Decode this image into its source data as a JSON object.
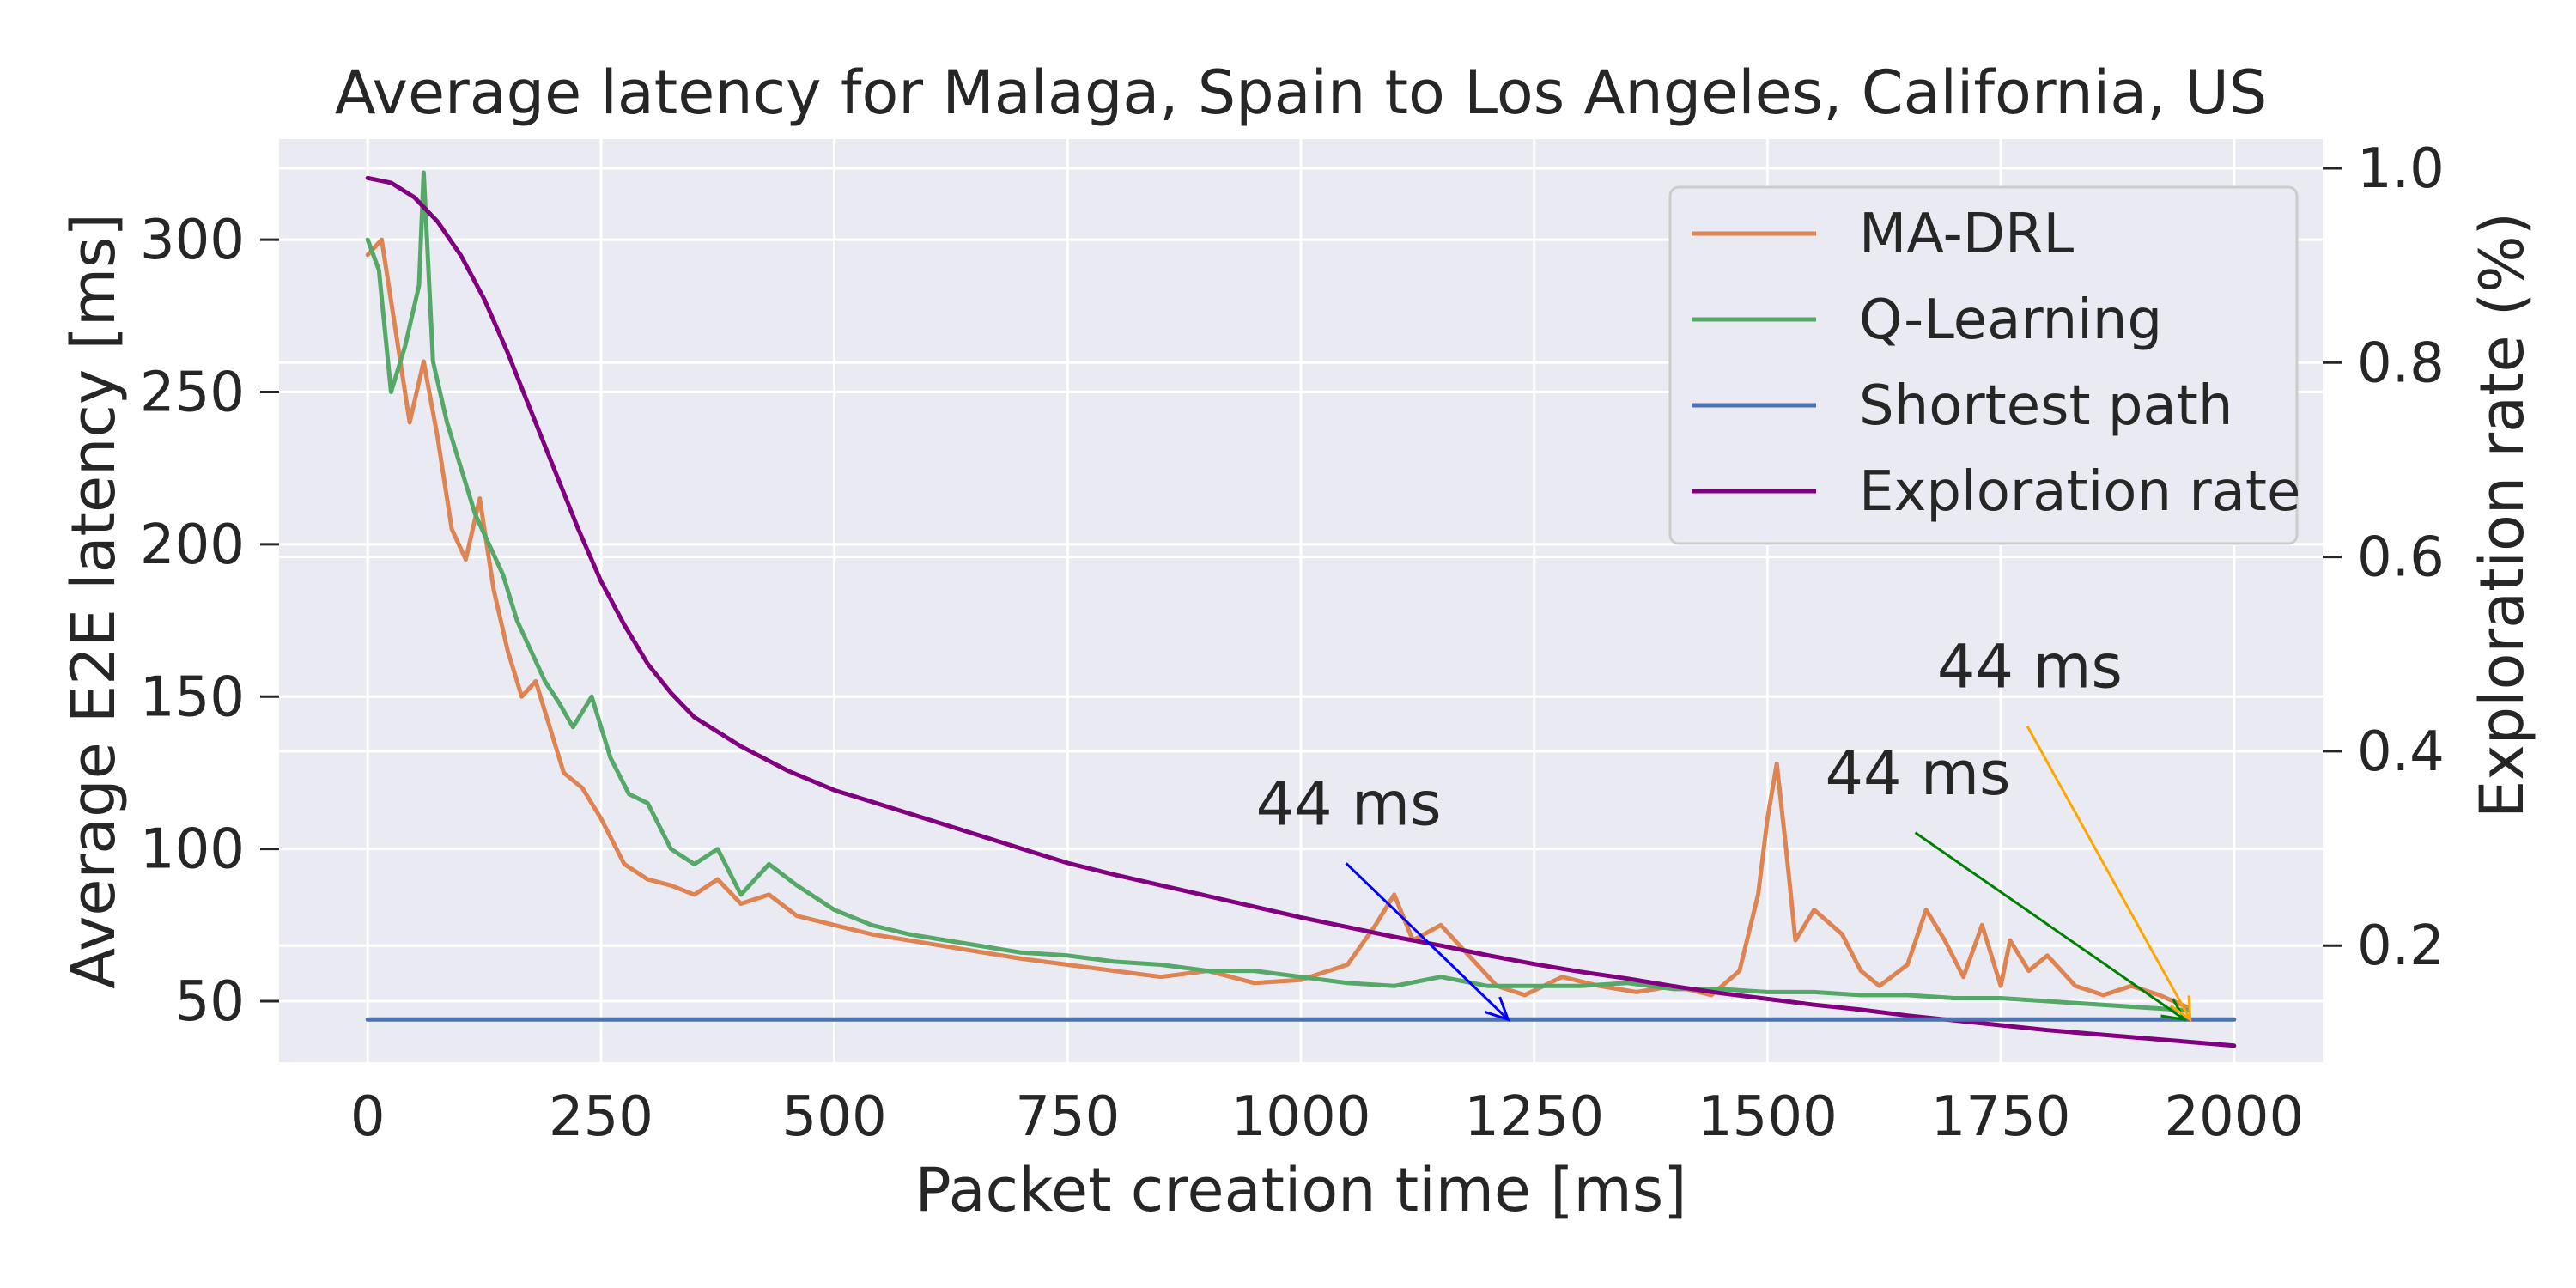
{
  "chart_data": {
    "type": "line",
    "title": "Average latency for Malaga, Spain to Los Angeles, California, US",
    "xlabel": "Packet creation time [ms]",
    "ylabel": "Average E2E latency [ms]",
    "y2label": "Exploration rate (%)",
    "xlim": [
      -95,
      2095
    ],
    "ylim": [
      30,
      333
    ],
    "y2lim": [
      0.08,
      1.03
    ],
    "xticks": [
      0,
      250,
      500,
      750,
      1000,
      1250,
      1500,
      1750,
      2000
    ],
    "yticks": [
      50,
      100,
      150,
      200,
      250,
      300
    ],
    "y2ticks": [
      0.2,
      0.4,
      0.6,
      0.8,
      1.0
    ],
    "grid": true,
    "legend_position": "top-right",
    "colors": {
      "background": "#eaeaf2",
      "grid": "#ffffff",
      "text": "#262626"
    },
    "series": [
      {
        "name": "MA-DRL",
        "color": "#dd8452",
        "axis": "left",
        "x": [
          0,
          15,
          30,
          45,
          60,
          75,
          90,
          105,
          120,
          135,
          150,
          165,
          180,
          195,
          210,
          230,
          250,
          275,
          300,
          325,
          350,
          375,
          400,
          430,
          460,
          500,
          540,
          580,
          620,
          660,
          700,
          750,
          800,
          850,
          900,
          950,
          1000,
          1050,
          1080,
          1100,
          1120,
          1150,
          1180,
          1210,
          1240,
          1280,
          1320,
          1360,
          1400,
          1440,
          1470,
          1490,
          1500,
          1510,
          1520,
          1530,
          1550,
          1580,
          1600,
          1620,
          1650,
          1670,
          1690,
          1710,
          1730,
          1750,
          1760,
          1780,
          1800,
          1830,
          1860,
          1890,
          1920,
          1950
        ],
        "y": [
          295,
          300,
          270,
          240,
          260,
          235,
          205,
          195,
          215,
          185,
          165,
          150,
          155,
          140,
          125,
          120,
          110,
          95,
          90,
          88,
          85,
          90,
          82,
          85,
          78,
          75,
          72,
          70,
          68,
          66,
          64,
          62,
          60,
          58,
          60,
          56,
          57,
          62,
          75,
          85,
          70,
          75,
          65,
          55,
          52,
          58,
          55,
          53,
          55,
          52,
          60,
          85,
          110,
          128,
          100,
          70,
          80,
          72,
          60,
          55,
          62,
          80,
          70,
          58,
          75,
          55,
          70,
          60,
          65,
          55,
          52,
          55,
          52,
          48
        ]
      },
      {
        "name": "Q-Learning",
        "color": "#55a868",
        "axis": "left",
        "x": [
          0,
          12,
          25,
          40,
          55,
          60,
          70,
          85,
          100,
          115,
          130,
          145,
          160,
          175,
          190,
          205,
          220,
          240,
          260,
          280,
          300,
          325,
          350,
          375,
          400,
          430,
          460,
          500,
          540,
          580,
          620,
          660,
          700,
          750,
          800,
          850,
          900,
          950,
          1000,
          1050,
          1100,
          1150,
          1200,
          1250,
          1300,
          1350,
          1400,
          1450,
          1500,
          1550,
          1600,
          1650,
          1700,
          1750,
          1800,
          1850,
          1900,
          1950
        ],
        "y": [
          300,
          290,
          250,
          265,
          285,
          322,
          260,
          240,
          225,
          210,
          200,
          190,
          175,
          165,
          155,
          148,
          140,
          150,
          130,
          118,
          115,
          100,
          95,
          100,
          85,
          95,
          88,
          80,
          75,
          72,
          70,
          68,
          66,
          65,
          63,
          62,
          60,
          60,
          58,
          56,
          55,
          58,
          55,
          55,
          55,
          56,
          54,
          54,
          53,
          53,
          52,
          52,
          51,
          51,
          50,
          49,
          48,
          47
        ]
      },
      {
        "name": "Shortest path",
        "color": "#4c72b0",
        "axis": "left",
        "x": [
          0,
          2000
        ],
        "y": [
          44,
          44
        ]
      },
      {
        "name": "Exploration rate",
        "color": "#800080",
        "axis": "right",
        "x": [
          0,
          25,
          50,
          75,
          100,
          125,
          150,
          175,
          200,
          225,
          250,
          275,
          300,
          325,
          350,
          375,
          400,
          450,
          500,
          550,
          600,
          650,
          700,
          750,
          800,
          850,
          900,
          950,
          1000,
          1050,
          1100,
          1150,
          1200,
          1250,
          1300,
          1350,
          1400,
          1450,
          1500,
          1550,
          1600,
          1650,
          1700,
          1750,
          1800,
          1850,
          1900,
          1950,
          2000
        ],
        "y": [
          0.99,
          0.985,
          0.97,
          0.945,
          0.91,
          0.865,
          0.81,
          0.75,
          0.69,
          0.63,
          0.575,
          0.53,
          0.49,
          0.46,
          0.435,
          0.42,
          0.405,
          0.38,
          0.36,
          0.345,
          0.33,
          0.315,
          0.3,
          0.285,
          0.273,
          0.262,
          0.251,
          0.24,
          0.229,
          0.219,
          0.209,
          0.2,
          0.19,
          0.181,
          0.173,
          0.166,
          0.158,
          0.151,
          0.145,
          0.139,
          0.134,
          0.128,
          0.123,
          0.118,
          0.113,
          0.109,
          0.105,
          0.101,
          0.097
        ]
      }
    ],
    "annotations": [
      {
        "text": "44 ms",
        "color": "#0000ff",
        "text_x": 1030,
        "text_y": 108,
        "target_x": 1222,
        "target_y": 44
      },
      {
        "text": "44 ms",
        "color": "#008000",
        "text_x": 1640,
        "text_y": 118,
        "target_x": 1947,
        "target_y": 44
      },
      {
        "text": "44 ms",
        "color": "#ffa500",
        "text_x": 1760,
        "text_y": 153,
        "target_x": 1953,
        "target_y": 44
      }
    ]
  }
}
